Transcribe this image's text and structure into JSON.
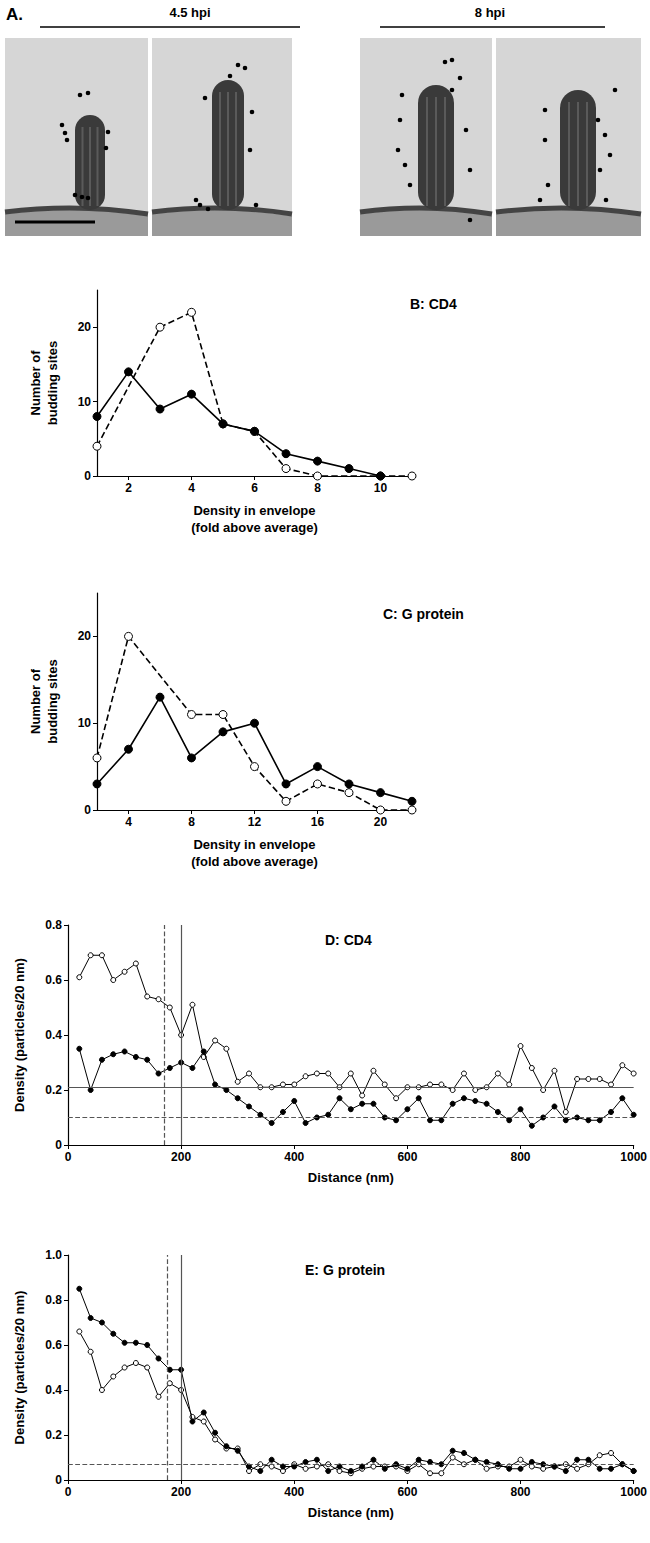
{
  "panel_a": {
    "label": "A.",
    "groups": [
      {
        "label": "4.5 hpi"
      },
      {
        "label": "8 hpi"
      }
    ]
  },
  "chart_data": [
    {
      "type": "line",
      "title": "B: CD4",
      "xlabel": "Density in envelope\n(fold above average)",
      "ylabel": "Number of\nbudding sites",
      "xlim": [
        1,
        11
      ],
      "xticks": [
        2,
        4,
        6,
        8,
        10
      ],
      "ylim": [
        0,
        25
      ],
      "yticks": [
        0,
        10,
        20
      ],
      "grid": false,
      "series": [
        {
          "color": "#000000",
          "marker": "filled",
          "line_style": "solid",
          "x": [
            1,
            2,
            3,
            4,
            5,
            6,
            7,
            8,
            9,
            10
          ],
          "values": [
            8,
            14,
            9,
            11,
            7,
            6,
            3,
            2,
            1,
            0
          ]
        },
        {
          "color": "#000000",
          "marker": "open",
          "line_style": "dashed",
          "x": [
            1,
            3,
            4,
            5,
            6,
            7,
            8,
            10,
            11
          ],
          "values": [
            4,
            20,
            22,
            7,
            6,
            1,
            0,
            0,
            0
          ]
        }
      ]
    },
    {
      "type": "line",
      "title": "C: G protein",
      "xlabel": "Density in envelope\n(fold above average)",
      "ylabel": "Number of\nbudding sites",
      "xlim": [
        2,
        22
      ],
      "xticks": [
        4,
        8,
        12,
        16,
        20
      ],
      "ylim": [
        0,
        25
      ],
      "yticks": [
        0,
        10,
        20
      ],
      "grid": false,
      "series": [
        {
          "color": "#000000",
          "marker": "filled",
          "line_style": "solid",
          "x": [
            2,
            4,
            6,
            8,
            10,
            12,
            14,
            16,
            18,
            20,
            22
          ],
          "values": [
            3,
            7,
            13,
            6,
            9,
            10,
            3,
            5,
            3,
            2,
            1
          ]
        },
        {
          "color": "#000000",
          "marker": "open",
          "line_style": "dashed",
          "x": [
            2,
            4,
            8,
            10,
            12,
            14,
            16,
            18,
            20,
            22
          ],
          "values": [
            6,
            20,
            11,
            11,
            5,
            1,
            3,
            2,
            0,
            0
          ]
        }
      ]
    },
    {
      "type": "line",
      "title": "D: CD4",
      "xlabel": "Distance (nm)",
      "ylabel": "Density (particles/20 nm)",
      "xlim": [
        0,
        1000
      ],
      "xticks": [
        0,
        200,
        400,
        600,
        800,
        1000
      ],
      "ylim": [
        0,
        0.8
      ],
      "yticks": [
        0,
        0.2,
        0.4,
        0.6,
        0.8
      ],
      "grid": false,
      "x": [
        20,
        40,
        60,
        80,
        100,
        120,
        140,
        160,
        180,
        200,
        220,
        240,
        260,
        280,
        300,
        320,
        340,
        360,
        380,
        400,
        420,
        440,
        460,
        480,
        500,
        520,
        540,
        560,
        580,
        600,
        620,
        640,
        660,
        680,
        700,
        720,
        740,
        760,
        780,
        800,
        820,
        840,
        860,
        880,
        900,
        920,
        940,
        960,
        980,
        1000
      ],
      "series": [
        {
          "color": "#000000",
          "marker": "filled",
          "line_style": "solid",
          "values": [
            0.35,
            0.2,
            0.31,
            0.33,
            0.34,
            0.32,
            0.31,
            0.26,
            0.28,
            0.3,
            0.28,
            0.34,
            0.22,
            0.2,
            0.17,
            0.14,
            0.11,
            0.08,
            0.12,
            0.16,
            0.08,
            0.1,
            0.11,
            0.17,
            0.13,
            0.15,
            0.15,
            0.1,
            0.09,
            0.13,
            0.17,
            0.09,
            0.09,
            0.15,
            0.17,
            0.16,
            0.15,
            0.12,
            0.09,
            0.13,
            0.07,
            0.1,
            0.14,
            0.09,
            0.1,
            0.09,
            0.09,
            0.12,
            0.17,
            0.11
          ]
        },
        {
          "color": "#000000",
          "marker": "open",
          "line_style": "solid",
          "values": [
            0.61,
            0.69,
            0.69,
            0.6,
            0.63,
            0.66,
            0.54,
            0.53,
            0.5,
            0.4,
            0.51,
            0.32,
            0.38,
            0.35,
            0.23,
            0.26,
            0.21,
            0.21,
            0.22,
            0.22,
            0.25,
            0.26,
            0.26,
            0.21,
            0.26,
            0.18,
            0.27,
            0.22,
            0.17,
            0.21,
            0.21,
            0.22,
            0.22,
            0.2,
            0.26,
            0.2,
            0.21,
            0.26,
            0.22,
            0.36,
            0.28,
            0.2,
            0.27,
            0.12,
            0.24,
            0.24,
            0.24,
            0.22,
            0.29,
            0.26
          ]
        }
      ],
      "reference_lines": [
        {
          "axis": "x",
          "value": 170,
          "line_style": "dashed"
        },
        {
          "axis": "x",
          "value": 200,
          "line_style": "solid"
        },
        {
          "axis": "y",
          "value": 0.21,
          "line_style": "solid"
        },
        {
          "axis": "y",
          "value": 0.1,
          "line_style": "dashed"
        }
      ]
    },
    {
      "type": "line",
      "title": "E: G protein",
      "xlabel": "Distance (nm)",
      "ylabel": "Density (particles/20 nm)",
      "xlim": [
        0,
        1000
      ],
      "xticks": [
        0,
        200,
        400,
        600,
        800,
        1000
      ],
      "ylim": [
        0,
        1
      ],
      "yticks": [
        0,
        0.2,
        0.4,
        0.6,
        0.8,
        {
          "value": 1,
          "label": "1.0"
        }
      ],
      "grid": false,
      "x": [
        20,
        40,
        60,
        80,
        100,
        120,
        140,
        160,
        180,
        200,
        220,
        240,
        260,
        280,
        300,
        320,
        340,
        360,
        380,
        400,
        420,
        440,
        460,
        480,
        500,
        520,
        540,
        560,
        580,
        600,
        620,
        640,
        660,
        680,
        700,
        720,
        740,
        760,
        780,
        800,
        820,
        840,
        860,
        880,
        900,
        920,
        940,
        960,
        980,
        1000
      ],
      "series": [
        {
          "color": "#000000",
          "marker": "filled",
          "line_style": "solid",
          "values": [
            0.85,
            0.72,
            0.7,
            0.65,
            0.61,
            0.61,
            0.6,
            0.54,
            0.49,
            0.49,
            0.26,
            0.3,
            0.21,
            0.15,
            0.13,
            0.06,
            0.04,
            0.09,
            0.06,
            0.06,
            0.08,
            0.09,
            0.04,
            0.06,
            0.04,
            0.06,
            0.09,
            0.05,
            0.07,
            0.05,
            0.09,
            0.08,
            0.07,
            0.13,
            0.12,
            0.09,
            0.08,
            0.07,
            0.05,
            0.05,
            0.08,
            0.07,
            0.06,
            0.04,
            0.09,
            0.09,
            0.05,
            0.05,
            0.07,
            0.04
          ]
        },
        {
          "color": "#000000",
          "marker": "open",
          "line_style": "solid",
          "values": [
            0.66,
            0.57,
            0.4,
            0.46,
            0.5,
            0.52,
            0.5,
            0.37,
            0.43,
            0.4,
            0.28,
            0.26,
            0.18,
            0.14,
            0.14,
            0.04,
            0.07,
            0.06,
            0.04,
            0.07,
            0.05,
            0.06,
            0.07,
            0.04,
            0.03,
            0.05,
            0.06,
            0.06,
            0.06,
            0.04,
            0.07,
            0.03,
            0.03,
            0.1,
            0.07,
            0.09,
            0.05,
            0.06,
            0.06,
            0.09,
            0.06,
            0.05,
            0.06,
            0.07,
            0.05,
            0.07,
            0.11,
            0.12,
            0.07,
            0.04
          ]
        }
      ],
      "reference_lines": [
        {
          "axis": "x",
          "value": 175,
          "line_style": "dashed"
        },
        {
          "axis": "x",
          "value": 200,
          "line_style": "solid"
        },
        {
          "axis": "y",
          "value": 0.07,
          "line_style": "dashed"
        }
      ]
    }
  ]
}
